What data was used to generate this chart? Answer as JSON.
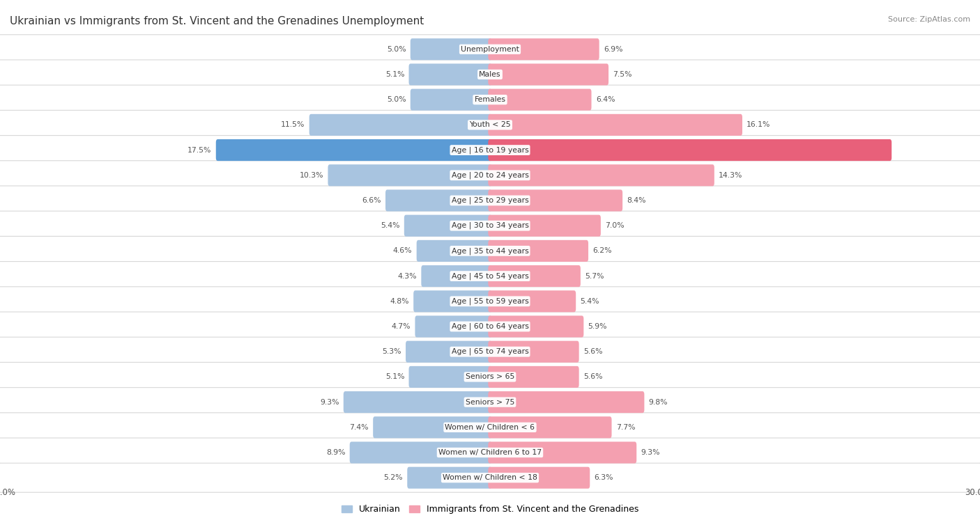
{
  "title": "Ukrainian vs Immigrants from St. Vincent and the Grenadines Unemployment",
  "source": "Source: ZipAtlas.com",
  "categories": [
    "Unemployment",
    "Males",
    "Females",
    "Youth < 25",
    "Age | 16 to 19 years",
    "Age | 20 to 24 years",
    "Age | 25 to 29 years",
    "Age | 30 to 34 years",
    "Age | 35 to 44 years",
    "Age | 45 to 54 years",
    "Age | 55 to 59 years",
    "Age | 60 to 64 years",
    "Age | 65 to 74 years",
    "Seniors > 65",
    "Seniors > 75",
    "Women w/ Children < 6",
    "Women w/ Children 6 to 17",
    "Women w/ Children < 18"
  ],
  "ukrainian": [
    5.0,
    5.1,
    5.0,
    11.5,
    17.5,
    10.3,
    6.6,
    5.4,
    4.6,
    4.3,
    4.8,
    4.7,
    5.3,
    5.1,
    9.3,
    7.4,
    8.9,
    5.2
  ],
  "immigrants": [
    6.9,
    7.5,
    6.4,
    16.1,
    25.7,
    14.3,
    8.4,
    7.0,
    6.2,
    5.7,
    5.4,
    5.9,
    5.6,
    5.6,
    9.8,
    7.7,
    9.3,
    6.3
  ],
  "ukrainian_color": "#a8c4e0",
  "immigrant_color": "#f4a0b0",
  "highlight_immigrant_color": "#e8607a",
  "highlight_ukr_color": "#5b9bd5",
  "highlight_row_idx": 4,
  "xlim": 30.0,
  "legend_ukrainian": "Ukrainian",
  "legend_immigrant": "Immigrants from St. Vincent and the Grenadines",
  "bar_height": 0.62,
  "title_fontsize": 11,
  "label_fontsize": 7.8,
  "value_fontsize": 7.8
}
